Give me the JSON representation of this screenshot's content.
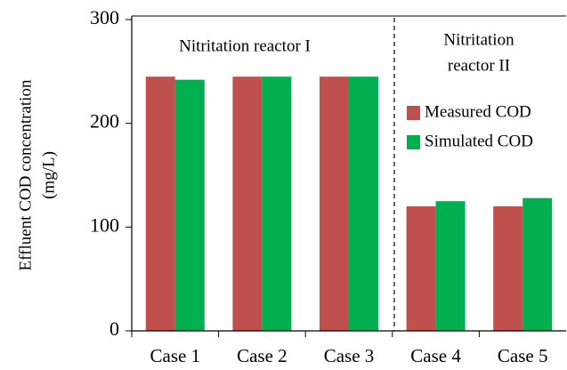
{
  "chart_data": {
    "type": "bar",
    "ylabel": [
      "Effluent COD concentration",
      "(mg/L)"
    ],
    "annotations": [
      [
        "Nitritation reactor I"
      ],
      [
        "Nitritation",
        "reactor II"
      ]
    ],
    "categories": [
      "Case 1",
      "Case 2",
      "Case 3",
      "Case 4",
      "Case 5"
    ],
    "series": [
      {
        "name": "Measured COD",
        "color": "#c0504d",
        "values": [
          245,
          245,
          245,
          120,
          120
        ]
      },
      {
        "name": "Simulated COD",
        "color": "#00b050",
        "values": [
          242,
          245,
          245,
          125,
          128
        ]
      }
    ],
    "ylim": [
      0,
      300
    ],
    "yticks": [
      0,
      100,
      200,
      300
    ]
  }
}
